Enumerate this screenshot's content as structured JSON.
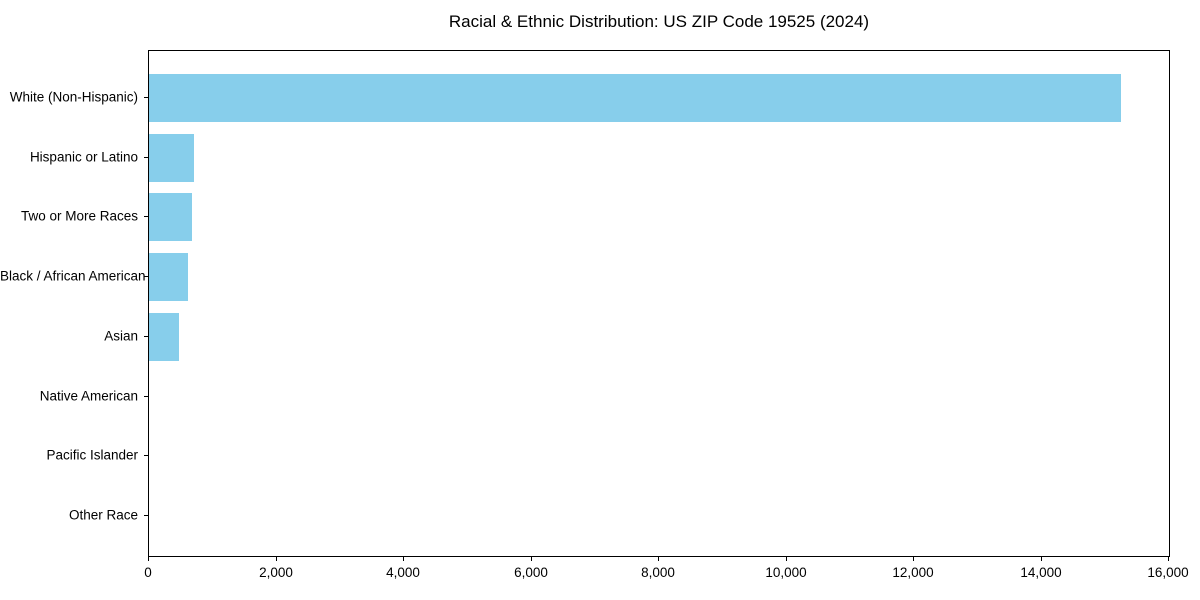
{
  "chart_data": {
    "type": "bar",
    "orientation": "horizontal",
    "title": "Racial & Ethnic Distribution: US ZIP Code 19525 (2024)",
    "categories": [
      "White (Non-Hispanic)",
      "Hispanic or Latino",
      "Two or More Races",
      "Black / African American",
      "Asian",
      "Native American",
      "Pacific Islander",
      "Other Race"
    ],
    "values": [
      15250,
      710,
      680,
      610,
      475,
      0,
      0,
      0
    ],
    "xlabel": "",
    "ylabel": "",
    "xlim": [
      0,
      16000
    ],
    "x_ticks": [
      0,
      2000,
      4000,
      6000,
      8000,
      10000,
      12000,
      14000,
      16000
    ],
    "x_tick_labels": [
      "0",
      "2,000",
      "4,000",
      "6,000",
      "8,000",
      "10,000",
      "12,000",
      "14,000",
      "16,000"
    ],
    "bar_color": "#87CEEB",
    "grid": false,
    "legend": null,
    "background_color": "#ffffff",
    "axis_color": "#000000"
  }
}
